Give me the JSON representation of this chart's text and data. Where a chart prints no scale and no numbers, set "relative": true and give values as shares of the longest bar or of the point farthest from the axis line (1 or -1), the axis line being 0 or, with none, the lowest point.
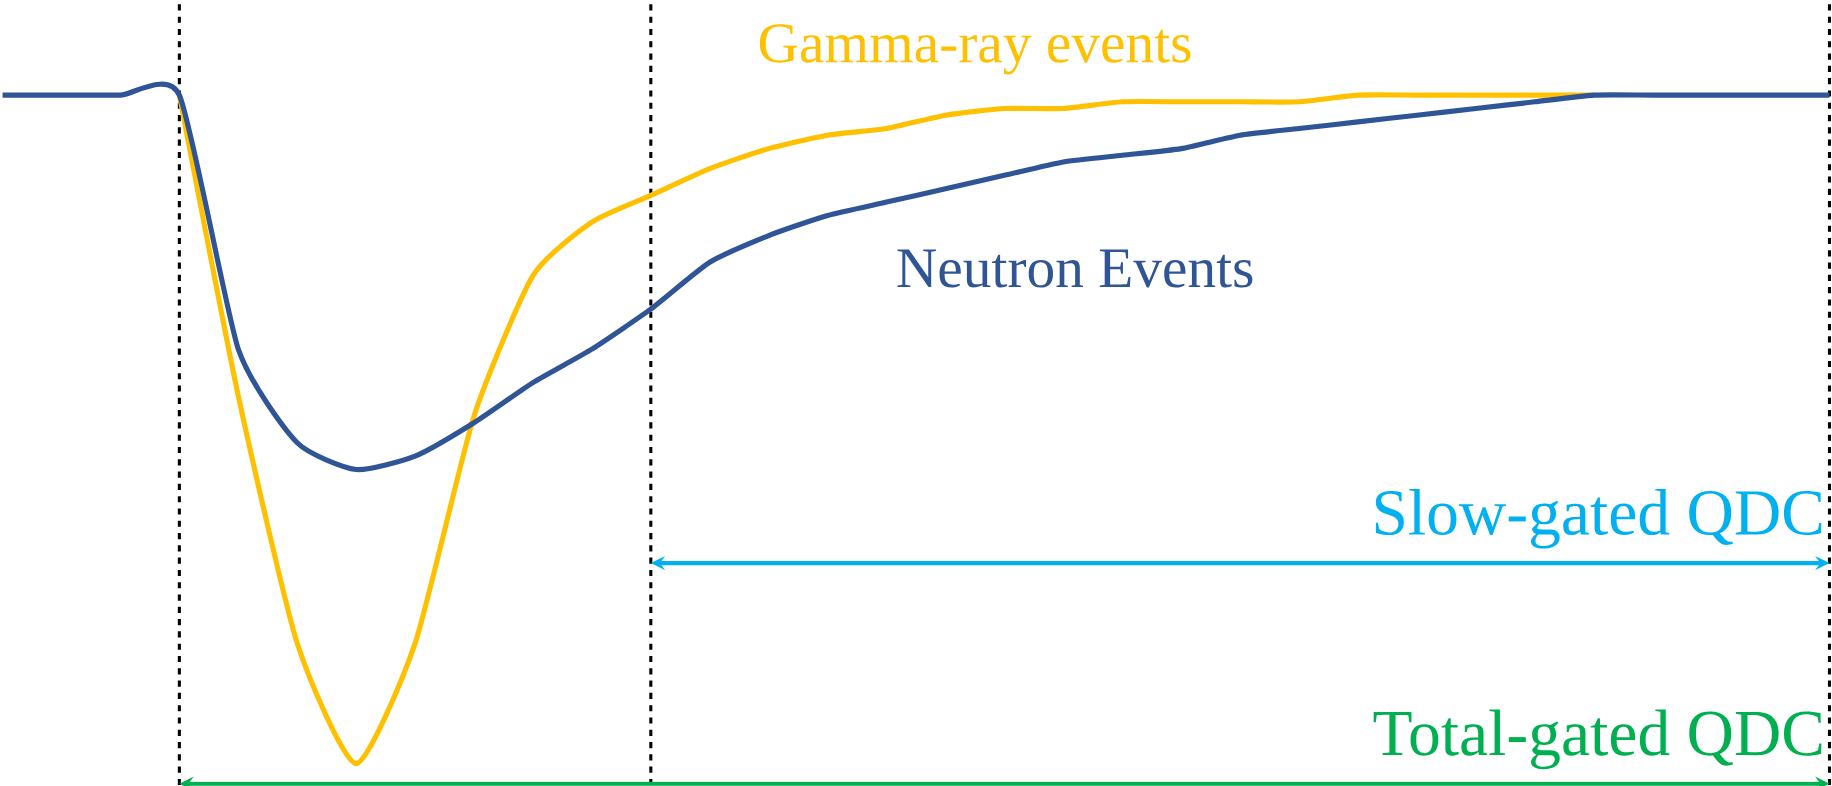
{
  "chart_data": {
    "type": "line",
    "relative": true,
    "grid": "x",
    "categories": [
      null,
      null,
      null,
      null,
      null,
      null,
      null,
      null,
      null,
      null,
      null,
      null,
      null,
      null,
      null,
      null,
      null,
      null,
      null,
      null,
      null,
      null,
      null,
      null,
      null,
      null,
      null,
      null,
      null,
      null,
      null,
      null
    ],
    "series": [
      {
        "name": "Gamma-ray events",
        "color": "#ffc000",
        "values": [
          null,
          null,
          null,
          1,
          0.55,
          0.18,
          0,
          0.18,
          0.52,
          0.73,
          0.81,
          0.85,
          0.89,
          0.92,
          0.94,
          0.95,
          0.97,
          0.98,
          0.98,
          0.99,
          0.99,
          0.99,
          0.99,
          1,
          1,
          1,
          1,
          1,
          null,
          null,
          null,
          null
        ]
      },
      {
        "name": "Neutron Events",
        "color": "#2f5597",
        "values": [
          1,
          1,
          1,
          1,
          0.62,
          0.48,
          0.44,
          0.46,
          0.51,
          0.57,
          0.62,
          0.68,
          0.75,
          0.79,
          0.82,
          0.84,
          0.86,
          0.88,
          0.9,
          0.91,
          0.92,
          0.94,
          0.95,
          0.96,
          0.97,
          0.98,
          0.99,
          1,
          1,
          1,
          1,
          1
        ]
      }
    ],
    "annotations": [
      "Slow-gated QDC",
      "Total-gated QDC"
    ]
  }
}
